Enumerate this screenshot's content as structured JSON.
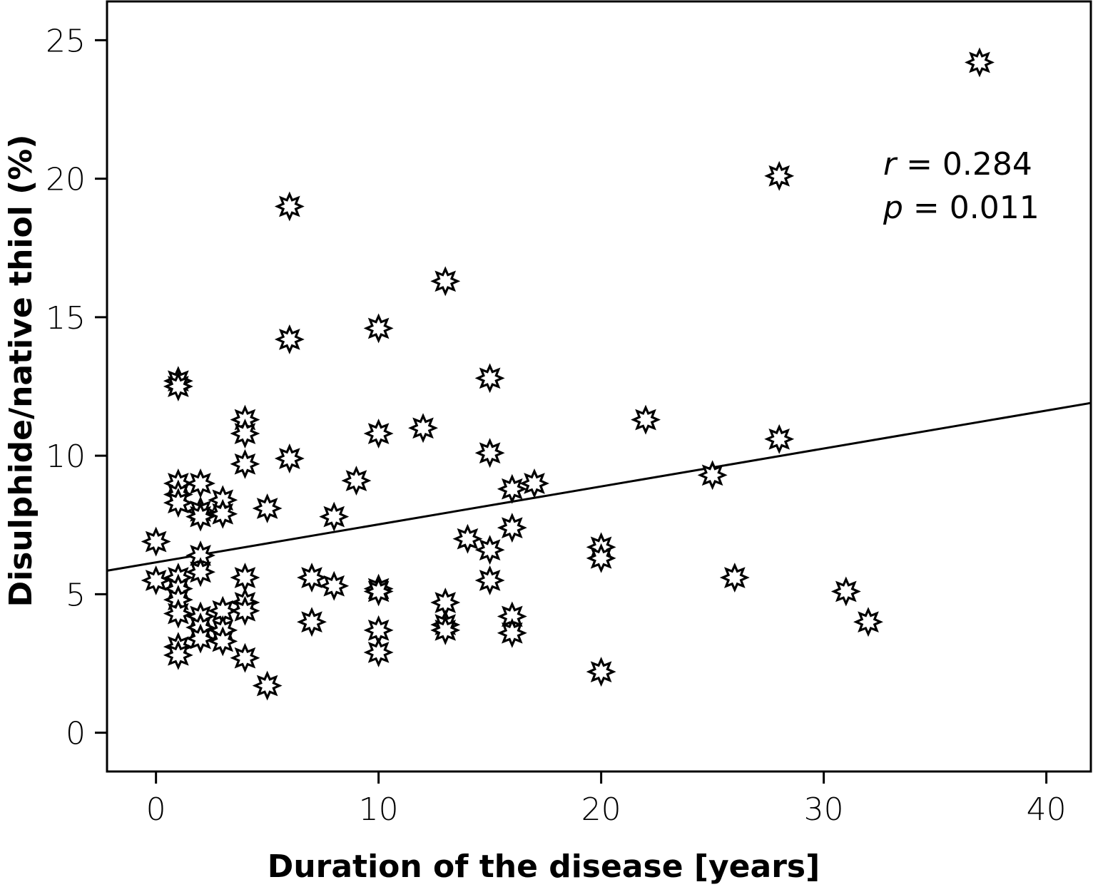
{
  "chart_data": {
    "type": "scatter",
    "title": "",
    "xlabel": "Duration of the disease [years]",
    "ylabel": "Disulphide/native thiol (%)",
    "xlim": [
      -2.2,
      42.0
    ],
    "ylim": [
      -1.4,
      26.4
    ],
    "xticks": [
      0,
      10,
      20,
      30,
      40
    ],
    "yticks": [
      0,
      5,
      10,
      15,
      20,
      25
    ],
    "xtick_labels": [
      "0",
      "10",
      "20",
      "30",
      "40"
    ],
    "ytick_labels": [
      "0",
      "5",
      "10",
      "15",
      "20",
      "25"
    ],
    "grid": false,
    "marker": "eight-point-star",
    "marker_color": "#000000",
    "marker_fill": "#ffffff",
    "points": [
      [
        0,
        6.9
      ],
      [
        0,
        5.5
      ],
      [
        1,
        12.7
      ],
      [
        1,
        12.5
      ],
      [
        1,
        9.0
      ],
      [
        1,
        8.6
      ],
      [
        1,
        8.3
      ],
      [
        1,
        5.6
      ],
      [
        1,
        5.2
      ],
      [
        1,
        4.8
      ],
      [
        1,
        4.3
      ],
      [
        1,
        3.1
      ],
      [
        1,
        2.8
      ],
      [
        2,
        9.0
      ],
      [
        2,
        8.0
      ],
      [
        2,
        7.8
      ],
      [
        2,
        6.4
      ],
      [
        2,
        5.8
      ],
      [
        2,
        4.2
      ],
      [
        2,
        3.8
      ],
      [
        2,
        3.4
      ],
      [
        3,
        8.4
      ],
      [
        3,
        7.9
      ],
      [
        3,
        4.4
      ],
      [
        3,
        3.7
      ],
      [
        3,
        3.3
      ],
      [
        4,
        11.3
      ],
      [
        4,
        10.8
      ],
      [
        4,
        9.7
      ],
      [
        4,
        5.6
      ],
      [
        4,
        4.7
      ],
      [
        4,
        4.4
      ],
      [
        4,
        2.7
      ],
      [
        5,
        8.1
      ],
      [
        5,
        1.7
      ],
      [
        6,
        19.0
      ],
      [
        6,
        14.2
      ],
      [
        6,
        9.9
      ],
      [
        7,
        5.6
      ],
      [
        7,
        4.0
      ],
      [
        8,
        7.8
      ],
      [
        8,
        5.3
      ],
      [
        9,
        9.1
      ],
      [
        10,
        14.6
      ],
      [
        10,
        10.8
      ],
      [
        10,
        5.2
      ],
      [
        10,
        5.1
      ],
      [
        10,
        3.7
      ],
      [
        10,
        2.9
      ],
      [
        12,
        11.0
      ],
      [
        13,
        16.3
      ],
      [
        13,
        4.7
      ],
      [
        13,
        3.9
      ],
      [
        13,
        3.7
      ],
      [
        14,
        7.0
      ],
      [
        15,
        12.8
      ],
      [
        15,
        10.1
      ],
      [
        15,
        6.6
      ],
      [
        15,
        5.5
      ],
      [
        16,
        8.8
      ],
      [
        16,
        7.4
      ],
      [
        16,
        4.2
      ],
      [
        16,
        3.6
      ],
      [
        17,
        9.0
      ],
      [
        20,
        6.7
      ],
      [
        20,
        6.3
      ],
      [
        20,
        2.2
      ],
      [
        22,
        11.3
      ],
      [
        25,
        9.3
      ],
      [
        26,
        5.6
      ],
      [
        28,
        20.1
      ],
      [
        28,
        10.6
      ],
      [
        31,
        5.1
      ],
      [
        32,
        4.0
      ],
      [
        37,
        24.2
      ]
    ],
    "regression_line": {
      "slope": 0.137,
      "intercept": 6.15
    },
    "annotations": {
      "r_symbol": "r",
      "r_value": " = 0.284",
      "p_symbol": "p",
      "p_value": " = 0.011"
    },
    "legend": "none"
  }
}
